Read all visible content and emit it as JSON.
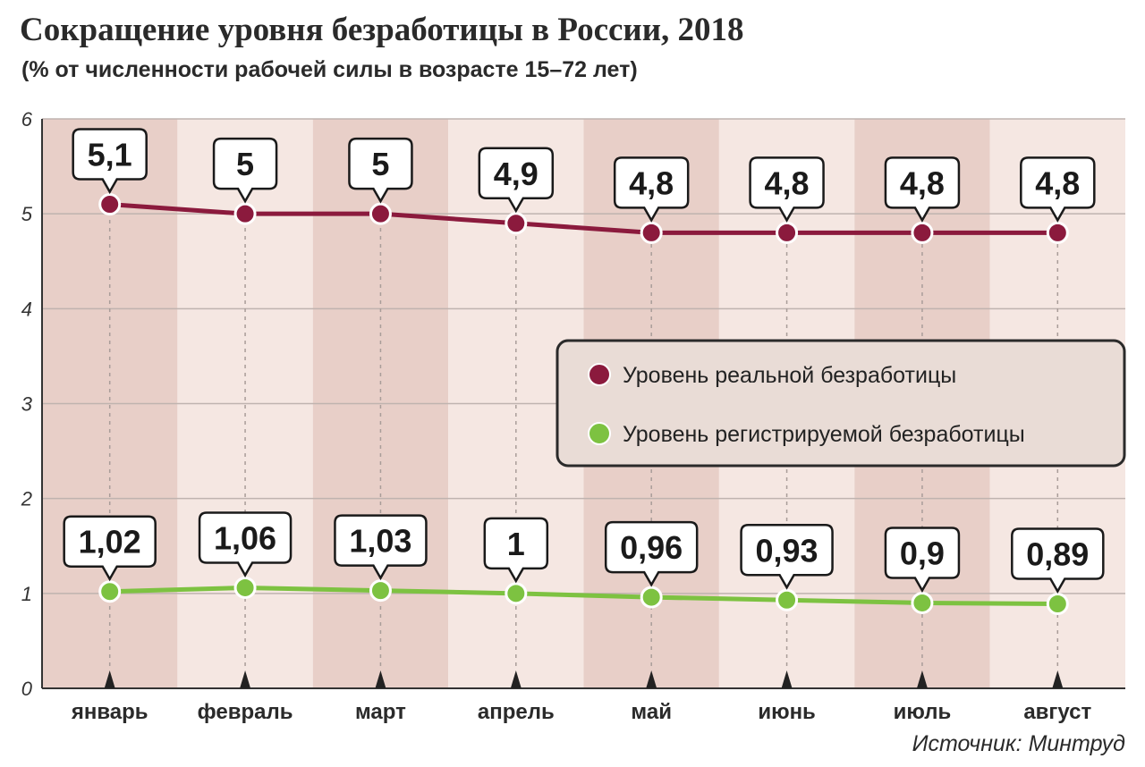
{
  "title": "Сокращение уровня безработицы в России, 2018",
  "subtitle": "(% от численности рабочей силы в возрасте 15–72 лет)",
  "source": "Источник: Минтруд",
  "colors": {
    "real": "#8b1a3d",
    "registered": "#7dc241",
    "stripe_dark": "#e8cfc8",
    "stripe_light": "#f5e7e2",
    "legend_bg": "#e9dcd6"
  },
  "chart_data": {
    "type": "line",
    "categories": [
      "январь",
      "февраль",
      "март",
      "апрель",
      "май",
      "июнь",
      "июль",
      "август"
    ],
    "ylim": [
      0,
      6
    ],
    "yticks": [
      "0",
      "1",
      "2",
      "3",
      "4",
      "5",
      "6"
    ],
    "grid": true,
    "legend_position": "right-middle",
    "series": [
      {
        "name": "Уровень реальной безработицы",
        "values": [
          5.1,
          5,
          5,
          4.9,
          4.8,
          4.8,
          4.8,
          4.8
        ],
        "labels": [
          "5,1",
          "5",
          "5",
          "4,9",
          "4,8",
          "4,8",
          "4,8",
          "4,8"
        ]
      },
      {
        "name": "Уровень регистрируемой безработицы",
        "values": [
          1.02,
          1.06,
          1.03,
          1,
          0.96,
          0.93,
          0.9,
          0.89
        ],
        "labels": [
          "1,02",
          "1,06",
          "1,03",
          "1",
          "0,96",
          "0,93",
          "0,9",
          "0,89"
        ]
      }
    ]
  }
}
